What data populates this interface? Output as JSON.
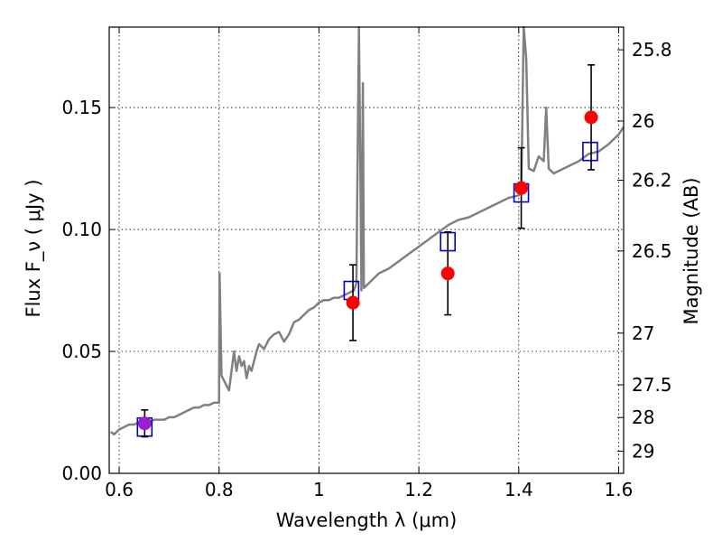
{
  "chart_data": {
    "type": "scatter",
    "title": "",
    "xlabel": "Wavelength  λ (μm)",
    "ylabel": "Flux  F_ν  ( μJy )",
    "y2label": "Magnitude (AB)",
    "xlim": [
      0.58,
      1.61
    ],
    "ylim": [
      0.0,
      0.183
    ],
    "grid": true,
    "x_ticks": [
      0.6,
      0.8,
      1.0,
      1.2,
      1.4,
      1.6
    ],
    "x_tick_labels": [
      "0.6",
      "0.8",
      "1",
      "1.2",
      "1.4",
      "1.6"
    ],
    "y_ticks": [
      0.0,
      0.05,
      0.1,
      0.15
    ],
    "y_tick_labels": [
      "0.00",
      "0.05",
      "0.10",
      "0.15"
    ],
    "y2_ticks": [
      {
        "label": "25.8",
        "flux": 0.1737
      },
      {
        "label": "26",
        "flux": 0.1445
      },
      {
        "label": "26.2",
        "flux": 0.1202
      },
      {
        "label": "26.5",
        "flux": 0.0912
      },
      {
        "label": "27",
        "flux": 0.0575
      },
      {
        "label": "27.5",
        "flux": 0.0363
      },
      {
        "label": "28",
        "flux": 0.0229
      },
      {
        "label": "29",
        "flux": 0.0091
      }
    ],
    "colors": {
      "model": "#808080",
      "observed": "#ff0000",
      "synthetic": "#0000cc",
      "observed_first": "#9b1fd1"
    },
    "series": [
      {
        "kind": "line",
        "x": [
          0.583,
          0.59,
          0.6,
          0.61,
          0.62,
          0.63,
          0.64,
          0.65,
          0.66,
          0.67,
          0.68,
          0.69,
          0.7,
          0.71,
          0.72,
          0.73,
          0.74,
          0.75,
          0.76,
          0.77,
          0.78,
          0.79,
          0.8,
          0.801,
          0.803,
          0.805,
          0.81,
          0.815,
          0.82,
          0.83,
          0.835,
          0.84,
          0.845,
          0.85,
          0.855,
          0.86,
          0.865,
          0.87,
          0.875,
          0.88,
          0.89,
          0.9,
          0.91,
          0.92,
          0.93,
          0.94,
          0.95,
          0.96,
          0.97,
          0.98,
          0.99,
          1.0,
          1.01,
          1.02,
          1.03,
          1.04,
          1.05,
          1.06,
          1.07,
          1.075,
          1.08,
          1.083,
          1.085,
          1.088,
          1.09,
          1.1,
          1.12,
          1.14,
          1.16,
          1.18,
          1.2,
          1.22,
          1.24,
          1.26,
          1.28,
          1.3,
          1.32,
          1.34,
          1.36,
          1.38,
          1.4,
          1.405,
          1.41,
          1.415,
          1.42,
          1.43,
          1.44,
          1.45,
          1.455,
          1.46,
          1.47,
          1.48,
          1.5,
          1.52,
          1.54,
          1.56,
          1.58,
          1.6,
          1.61
        ],
        "y": [
          0.017,
          0.016,
          0.018,
          0.019,
          0.02,
          0.02,
          0.021,
          0.021,
          0.021,
          0.022,
          0.022,
          0.022,
          0.023,
          0.023,
          0.024,
          0.025,
          0.026,
          0.027,
          0.027,
          0.028,
          0.028,
          0.029,
          0.029,
          0.082,
          0.06,
          0.04,
          0.038,
          0.036,
          0.034,
          0.05,
          0.042,
          0.048,
          0.044,
          0.046,
          0.039,
          0.044,
          0.042,
          0.046,
          0.05,
          0.053,
          0.051,
          0.055,
          0.057,
          0.058,
          0.054,
          0.057,
          0.062,
          0.063,
          0.065,
          0.067,
          0.068,
          0.07,
          0.071,
          0.071,
          0.072,
          0.072,
          0.073,
          0.074,
          0.075,
          0.078,
          0.183,
          0.12,
          0.075,
          0.16,
          0.076,
          0.078,
          0.082,
          0.084,
          0.087,
          0.09,
          0.093,
          0.096,
          0.099,
          0.102,
          0.104,
          0.105,
          0.107,
          0.109,
          0.111,
          0.113,
          0.114,
          0.116,
          0.183,
          0.17,
          0.125,
          0.124,
          0.13,
          0.128,
          0.15,
          0.125,
          0.123,
          0.124,
          0.126,
          0.128,
          0.131,
          0.132,
          0.135,
          0.139,
          0.142
        ]
      },
      {
        "kind": "observed",
        "x": [
          0.651,
          1.068,
          1.258,
          1.405,
          1.545
        ],
        "y": [
          0.0205,
          0.07,
          0.082,
          0.117,
          0.146
        ],
        "yerr": [
          0.0055,
          0.0155,
          0.017,
          0.0165,
          0.0215
        ]
      },
      {
        "kind": "synthetic",
        "x": [
          0.651,
          1.065,
          1.258,
          1.405,
          1.543
        ],
        "y": [
          0.019,
          0.075,
          0.095,
          0.115,
          0.132
        ]
      }
    ]
  }
}
